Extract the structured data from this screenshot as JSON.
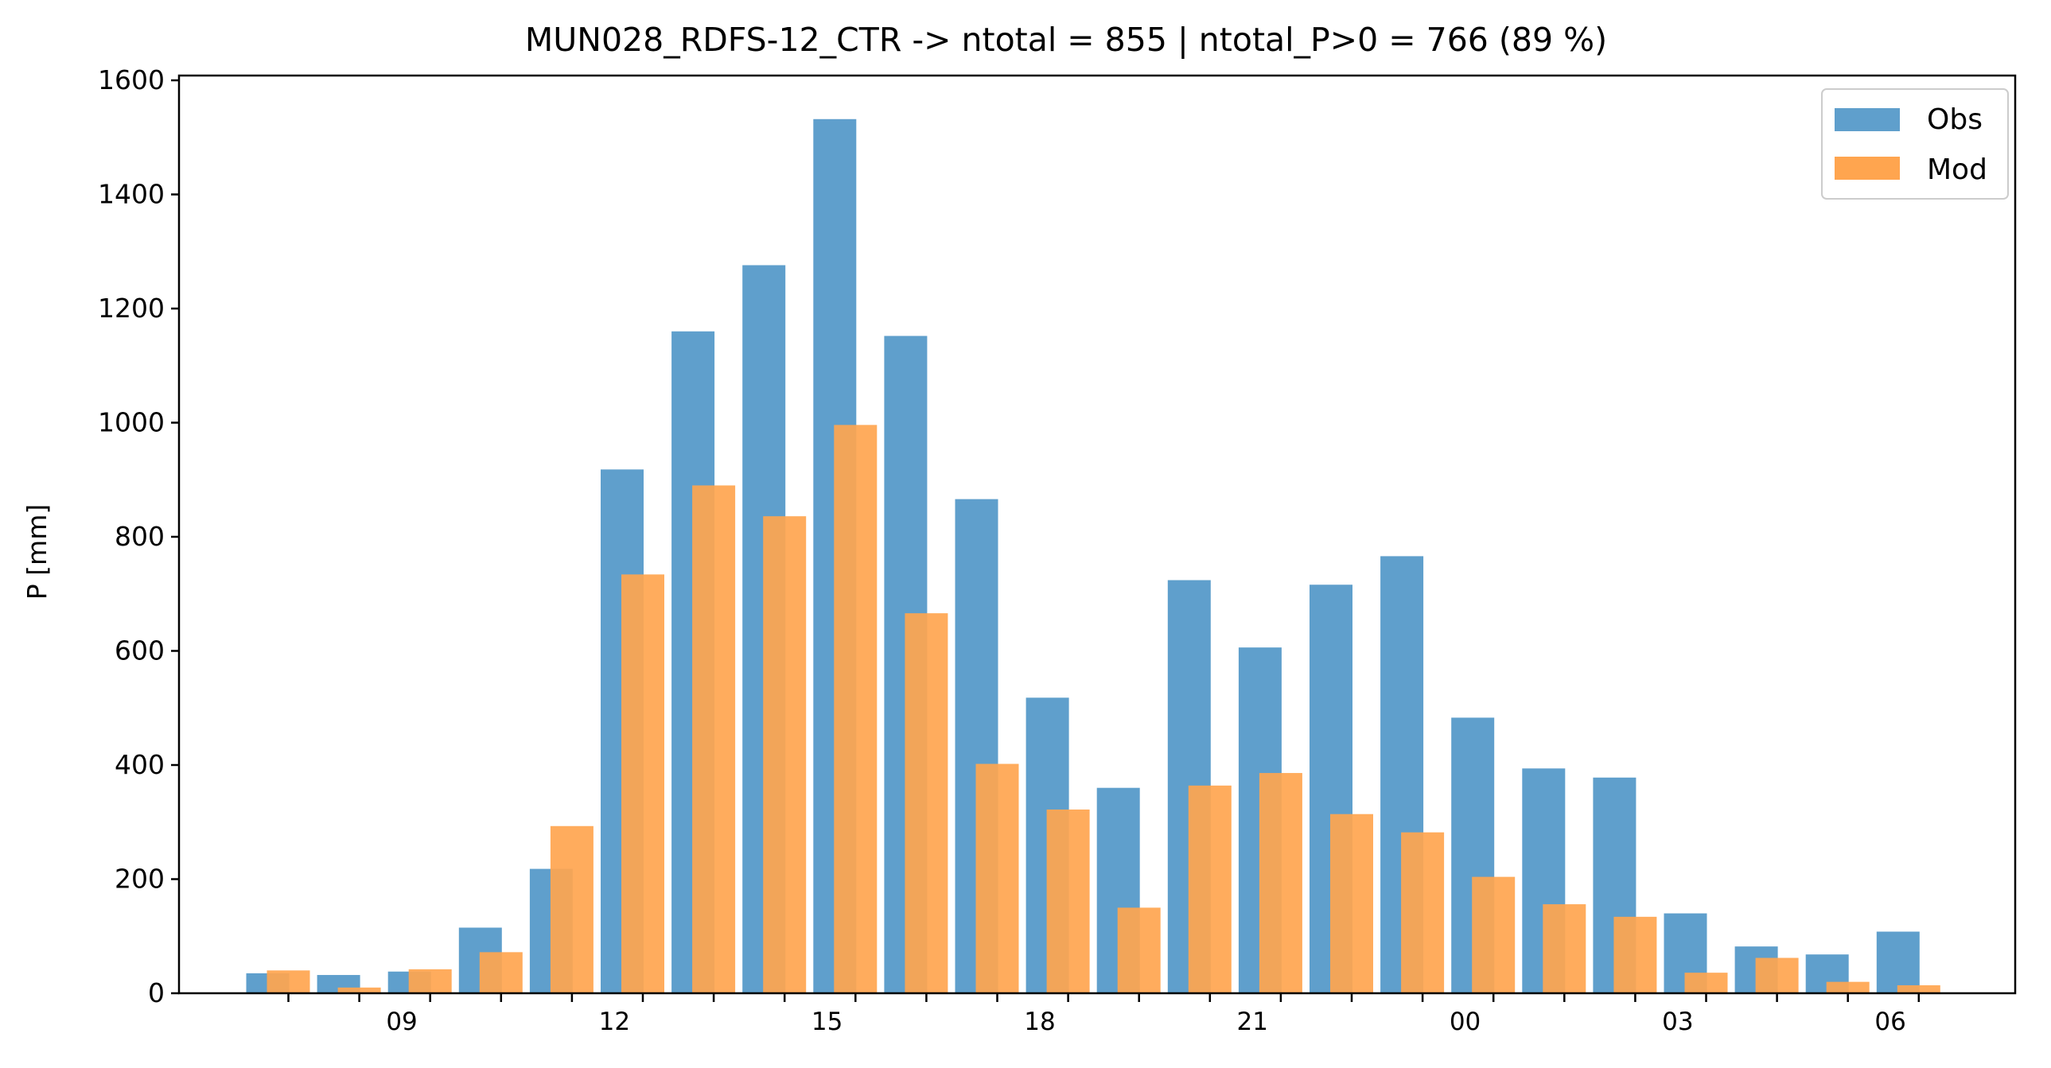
{
  "chart_data": {
    "type": "bar",
    "title": "MUN028_RDFS-12_CTR -> ntotal = 855 | ntotal_P>0 = 766 (89 %)",
    "xlabel": "",
    "ylabel": "P [mm]",
    "ylim": [
      0,
      1600
    ],
    "yticks": [
      0,
      200,
      400,
      600,
      800,
      1000,
      1200,
      1400,
      1600
    ],
    "hours": [
      8,
      9,
      10,
      11,
      12,
      13,
      14,
      15,
      16,
      17,
      18,
      19,
      20,
      21,
      22,
      23,
      0,
      1,
      2,
      3,
      4,
      5,
      6,
      7
    ],
    "xtick_labels": [
      "09",
      "12",
      "15",
      "18",
      "21",
      "00",
      "03",
      "06"
    ],
    "series": [
      {
        "name": "Obs",
        "color": "#5f9fcc",
        "values": [
          35,
          32,
          38,
          115,
          218,
          918,
          1160,
          1276,
          1532,
          1152,
          866,
          518,
          360,
          724,
          606,
          716,
          766,
          483,
          394,
          378,
          140,
          82,
          68,
          108
        ]
      },
      {
        "name": "Mod",
        "color": "#ffa54f",
        "values": [
          40,
          10,
          42,
          72,
          293,
          734,
          890,
          836,
          996,
          666,
          402,
          322,
          150,
          364,
          386,
          314,
          282,
          204,
          156,
          134,
          36,
          62,
          20,
          14
        ]
      }
    ],
    "legend": {
      "position": "top-right",
      "entries": [
        "Obs",
        "Mod"
      ]
    },
    "grid": false
  }
}
